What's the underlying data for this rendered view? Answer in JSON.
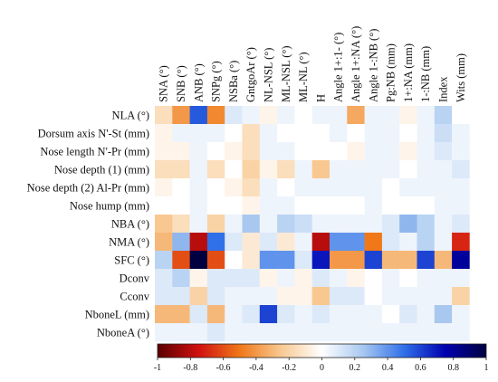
{
  "chart_data": {
    "type": "heatmap",
    "title": "",
    "xlabel": "",
    "ylabel": "",
    "columns": [
      "SNA (°)",
      "SNB (°)",
      "ANB (°)",
      "SNPg (°)",
      "NSBa (°)",
      "GntgoAr (°)",
      "NL-NSL (°)",
      "ML-NSL (°)",
      "ML-NL (°)",
      "H",
      "Angle 1+:1- (°)",
      "Angle 1+:NA (°)",
      "Angle 1-:NB (°)",
      "Pg:NB (mm)",
      "1+:NA (mm)",
      "1-:NB (mm)",
      "Index",
      "Wits (mm)"
    ],
    "rows": [
      "NLA (°)",
      "Dorsum axis N'-St (mm)",
      "Nose length N'-Pr (mm)",
      "Nose depth (1) (mm)",
      "Nose depth (2) Al-Pr (mm)",
      "Nose hump (mm)",
      "NBA (°)",
      "NMA (°)",
      "SFC (°)",
      "Dconv",
      "Cconv",
      "NboneL (mm)",
      "NboneA (°)"
    ],
    "values": [
      [
        -0.15,
        -0.4,
        0.55,
        -0.45,
        0.1,
        0.05,
        -0.05,
        0.05,
        0.0,
        0.05,
        0.05,
        -0.35,
        0.05,
        0.05,
        -0.05,
        0.05,
        0.2,
        0.0
      ],
      [
        -0.05,
        0.05,
        0.05,
        0.05,
        0.0,
        -0.15,
        0.05,
        0.0,
        0.0,
        0.0,
        0.05,
        0.0,
        0.05,
        0.05,
        0.0,
        0.05,
        0.15,
        0.05
      ],
      [
        -0.05,
        -0.05,
        0.05,
        0.0,
        -0.05,
        -0.15,
        0.05,
        0.05,
        0.0,
        0.0,
        0.0,
        -0.05,
        0.05,
        0.05,
        -0.05,
        0.05,
        0.1,
        0.05
      ],
      [
        -0.15,
        -0.15,
        0.05,
        -0.15,
        0.0,
        -0.2,
        -0.05,
        -0.15,
        0.05,
        -0.25,
        0.05,
        0.05,
        0.05,
        0.05,
        0.0,
        0.05,
        0.05,
        0.1
      ],
      [
        -0.05,
        0.0,
        0.05,
        0.0,
        -0.05,
        -0.15,
        0.05,
        0.0,
        0.05,
        0.05,
        0.05,
        0.05,
        0.05,
        0.0,
        0.05,
        0.05,
        0.05,
        0.05
      ],
      [
        0.0,
        0.0,
        0.05,
        0.0,
        0.0,
        -0.05,
        0.05,
        0.05,
        0.0,
        0.0,
        0.0,
        0.0,
        0.05,
        0.0,
        0.0,
        0.0,
        0.05,
        0.05
      ],
      [
        -0.25,
        -0.15,
        0.05,
        -0.2,
        0.05,
        0.25,
        0.05,
        0.2,
        0.15,
        0.05,
        0.05,
        0.05,
        0.05,
        0.1,
        0.3,
        0.2,
        0.05,
        0.1
      ],
      [
        -0.3,
        0.3,
        -0.8,
        0.5,
        0.1,
        -0.1,
        0.1,
        -0.1,
        0.05,
        -0.8,
        0.4,
        0.4,
        -0.5,
        0.1,
        0.05,
        0.2,
        0.05,
        -0.7
      ],
      [
        0.2,
        -0.6,
        1.0,
        -0.6,
        0.0,
        -0.1,
        0.4,
        0.4,
        0.1,
        0.7,
        -0.4,
        -0.4,
        0.6,
        -0.3,
        -0.3,
        0.6,
        -0.3,
        0.8
      ],
      [
        0.1,
        0.2,
        -0.05,
        0.1,
        0.1,
        0.1,
        -0.05,
        0.05,
        -0.05,
        0.1,
        0.05,
        -0.05,
        0.0,
        0.05,
        0.0,
        0.05,
        0.05,
        0.05
      ],
      [
        0.1,
        0.1,
        -0.2,
        0.1,
        0.05,
        0.05,
        0.05,
        -0.05,
        -0.05,
        -0.25,
        0.1,
        0.1,
        0.0,
        0.05,
        0.05,
        0.05,
        0.05,
        -0.2
      ],
      [
        -0.3,
        -0.3,
        0.1,
        -0.3,
        0.05,
        0.1,
        0.6,
        0.1,
        0.05,
        0.1,
        0.05,
        0.05,
        0.05,
        0.0,
        0.1,
        0.05,
        0.25,
        0.05
      ],
      [
        0.05,
        0.05,
        0.05,
        0.1,
        0.05,
        0.05,
        0.05,
        0.05,
        0.05,
        0.05,
        0.05,
        0.05,
        0.05,
        0.05,
        0.05,
        0.05,
        0.05,
        0.05
      ]
    ],
    "colorbar": {
      "min": -1,
      "max": 1,
      "ticks": [
        -1,
        -0.8,
        -0.6,
        -0.4,
        -0.2,
        0,
        0.2,
        0.4,
        0.6,
        0.8,
        1
      ],
      "tick_labels": [
        "-1",
        "-0.8",
        "-0.6",
        "-0.4",
        "-0.2",
        "0",
        "0.2",
        "0.4",
        "0.6",
        "0.8",
        "1"
      ],
      "colormap": [
        "#5a0000",
        "#d01010",
        "#f07818",
        "#f8c890",
        "#ffffff",
        "#a8c8f0",
        "#3070e8",
        "#0000b0",
        "#000040"
      ]
    },
    "legend_position": "bottom",
    "grid": false
  }
}
